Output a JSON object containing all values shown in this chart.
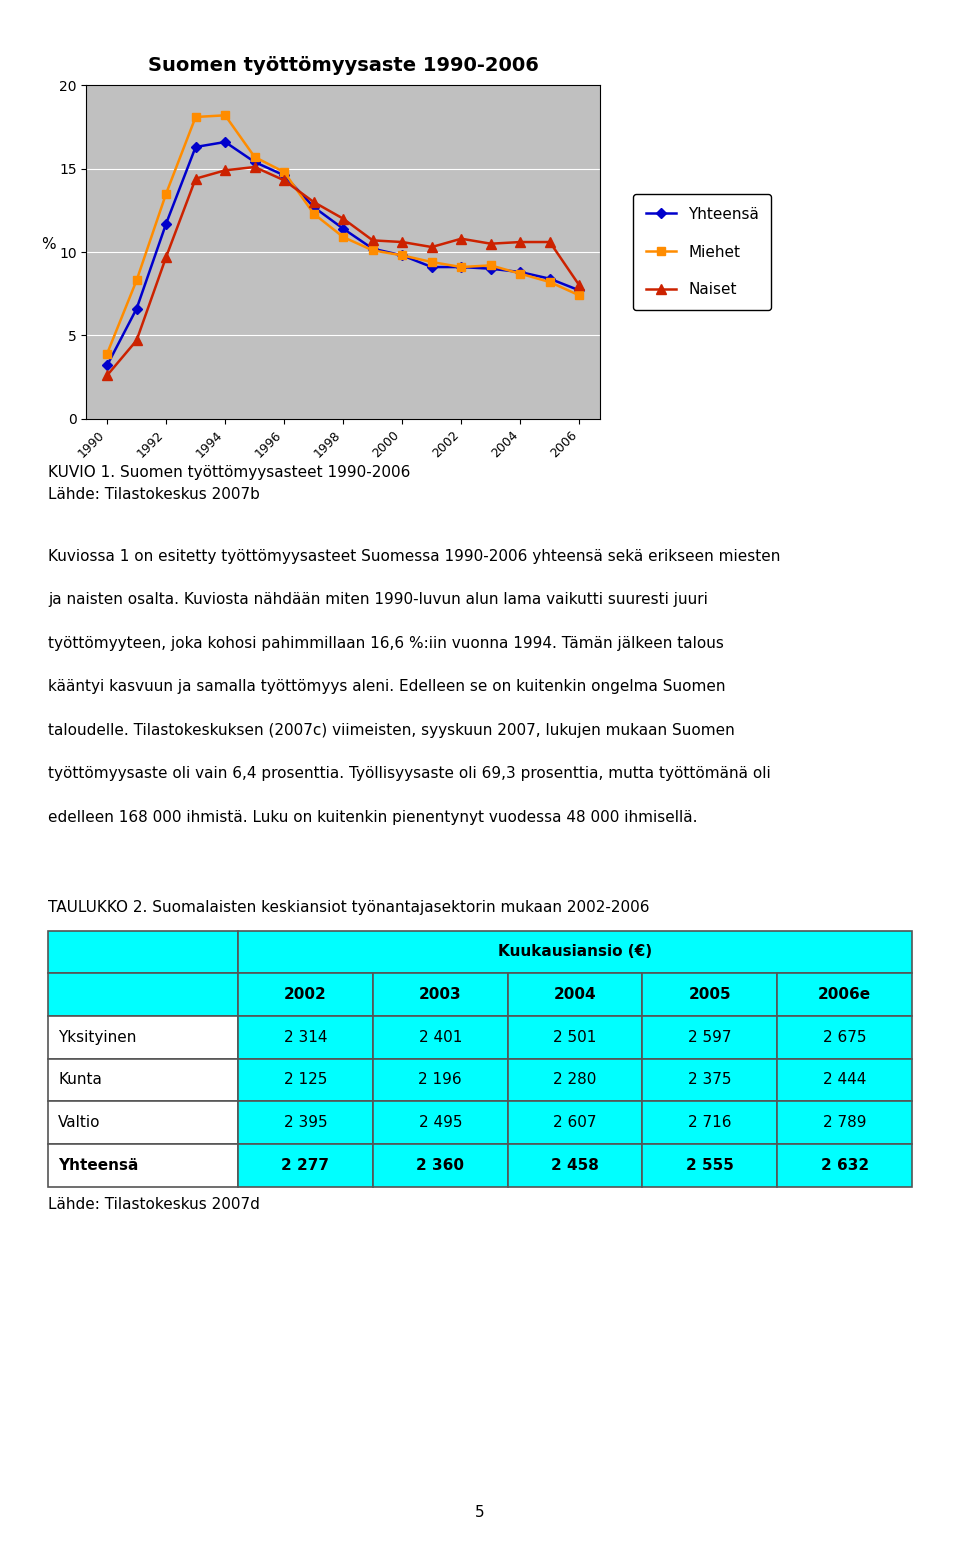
{
  "title": "Suomen työttömyysaste 1990-2006",
  "years": [
    1990,
    1991,
    1992,
    1993,
    1994,
    1995,
    1996,
    1997,
    1998,
    1999,
    2000,
    2001,
    2002,
    2003,
    2004,
    2005,
    2006
  ],
  "yhteensa": [
    3.2,
    6.6,
    11.7,
    16.3,
    16.6,
    15.4,
    14.6,
    12.7,
    11.4,
    10.2,
    9.8,
    9.1,
    9.1,
    9.0,
    8.8,
    8.4,
    7.7
  ],
  "miehet": [
    3.9,
    8.3,
    13.5,
    18.1,
    18.2,
    15.7,
    14.8,
    12.3,
    10.9,
    10.1,
    9.8,
    9.4,
    9.1,
    9.2,
    8.7,
    8.2,
    7.4
  ],
  "naiset": [
    2.6,
    4.7,
    9.7,
    14.4,
    14.9,
    15.1,
    14.3,
    13.0,
    12.0,
    10.7,
    10.6,
    10.3,
    10.8,
    10.5,
    10.6,
    10.6,
    8.0
  ],
  "yhteensa_color": "#0000CC",
  "miehet_color": "#FF8C00",
  "naiset_color": "#CC2200",
  "chart_bg": "#C0C0C0",
  "page_bg": "#FFFFFF",
  "ylim": [
    0,
    20
  ],
  "yticks": [
    0,
    5,
    10,
    15,
    20
  ],
  "ylabel": "%",
  "chart_title_fontsize": 14,
  "caption1": "KUVIO 1. Suomen työttömyysasteet 1990-2006",
  "caption2": "Lähde: Tilastokeskus 2007b",
  "body_paragraphs": [
    "Kuviossa 1 on esitetty työttömyysasteet Suomessa 1990-2006 yhteensä sekä erikseen miesten ja naisten osalta. Kuviosta nähdään miten 1990-luvun alun lama vaikutti suuresti juuri työttömyyteen, joka kohosi pahimmillaan 16,6 %:iin vuonna 1994. Tämän jälkeen talous kääntyi kasvuun ja samalla työttömyys aleni. Edelleen se on kuitenkin ongelma Suomen taloudelle. Tilastokeskuksen (2007c) viimeisten, syyskuun 2007, lukujen mukaan Suomen työttömyysaste oli vain 6,4 prosenttia. Työllisyysaste oli 69,3 prosenttia, mutta työttömänä oli edelleen 168 000 ihmistä. Luku on kuitenkin pienentynyt vuodessa 48 000 ihmisellä."
  ],
  "table_title": "TAULUKKO 2. Suomalaisten keskiansiot työnantajasektorin mukaan 2002-2006",
  "table_header_main": "Kuukausiansio (€)",
  "table_years": [
    "2002",
    "2003",
    "2004",
    "2005",
    "2006e"
  ],
  "table_rows": [
    [
      "Yksityinen",
      "2 314",
      "2 401",
      "2 501",
      "2 597",
      "2 675"
    ],
    [
      "Kunta",
      "2 125",
      "2 196",
      "2 280",
      "2 375",
      "2 444"
    ],
    [
      "Valtio",
      "2 395",
      "2 495",
      "2 607",
      "2 716",
      "2 789"
    ],
    [
      "Yhteensä",
      "2 277",
      "2 360",
      "2 458",
      "2 555",
      "2 632"
    ]
  ],
  "table_bg": "#00FFFF",
  "table_caption": "Lähde: Tilastokeskus 2007d",
  "page_number": "5",
  "legend_labels": [
    "Yhteensä",
    "Miehet",
    "Naiset"
  ]
}
